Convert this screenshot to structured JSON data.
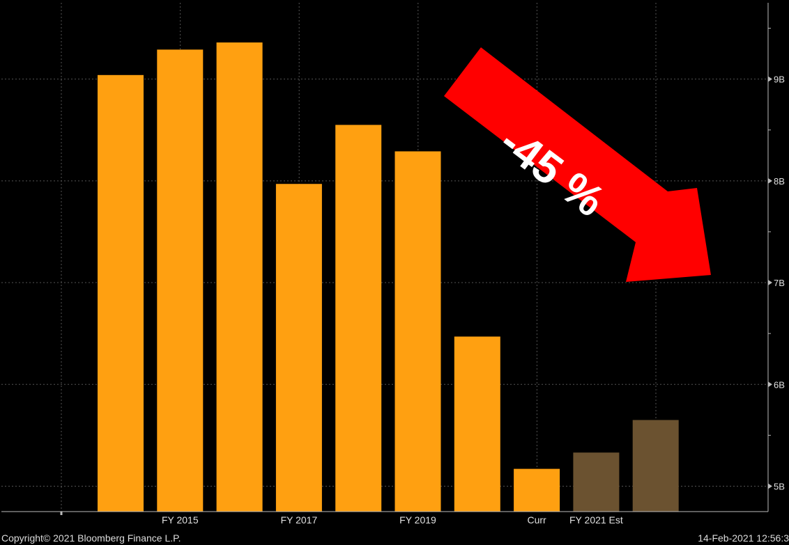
{
  "chart_data": {
    "type": "bar",
    "categories": [
      "",
      "FY 2015",
      "",
      "FY 2017",
      "",
      "FY 2019",
      "",
      "Curr",
      "FY 2021 Est",
      ""
    ],
    "values": [
      9.04,
      9.29,
      9.36,
      7.97,
      8.55,
      8.29,
      6.47,
      5.17,
      5.33,
      5.65
    ],
    "estimate_flags": [
      false,
      false,
      false,
      false,
      false,
      false,
      false,
      false,
      true,
      true
    ],
    "unit": "B",
    "y_ticks": [
      {
        "value": 5,
        "label": "5B"
      },
      {
        "value": 6,
        "label": "6B"
      },
      {
        "value": 7,
        "label": "7B"
      },
      {
        "value": 8,
        "label": "8B"
      },
      {
        "value": 9,
        "label": "9B"
      }
    ],
    "ylim": [
      4.75,
      9.75
    ],
    "grid": true,
    "colors": {
      "actual": "#FFA011",
      "estimate": "#6B5230",
      "background": "#000000",
      "grid": "#555555",
      "axis": "#BBBBBB",
      "annotation_arrow": "#FF0000"
    },
    "annotation": {
      "text": "-45 %"
    }
  },
  "footer": {
    "copyright": "Copyright© 2021 Bloomberg Finance L.P.",
    "timestamp": "14-Feb-2021 12:56:3"
  }
}
